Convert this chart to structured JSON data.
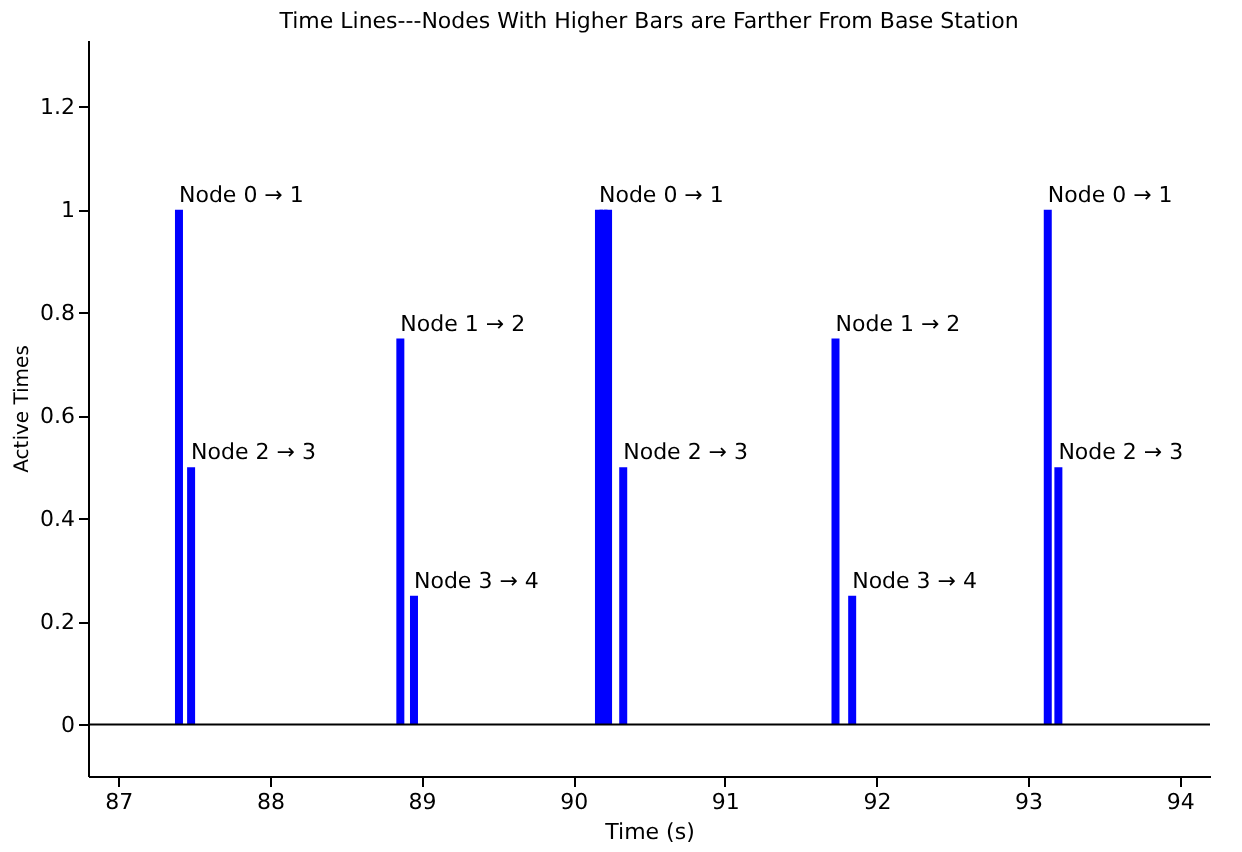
{
  "chart_data": {
    "type": "bar",
    "title": "Time Lines---Nodes With Higher Bars are Farther From Base Station",
    "xlabel": "Time (s)",
    "ylabel": "Active Times",
    "x": [
      87.4,
      87.48,
      88.86,
      88.95,
      90.17,
      90.2,
      90.23,
      90.33,
      91.73,
      91.84,
      93.13,
      93.2
    ],
    "series": [
      {
        "color": "#0000ff",
        "values": [
          1,
          0.5,
          0.75,
          0.25,
          1,
          1,
          1,
          0.5,
          0.75,
          0.25,
          1,
          0.5
        ]
      }
    ],
    "xlim": [
      86.8,
      94.2
    ],
    "xticks": [
      87,
      88,
      89,
      90,
      91,
      92,
      93,
      94
    ],
    "ylim": [
      -0.1,
      1.33
    ],
    "yticks": [
      0,
      0.2,
      0.4,
      0.6,
      0.8,
      1,
      1.2
    ],
    "ref_lines": [
      {
        "axis": "y",
        "value": 0
      }
    ],
    "grid": false,
    "annotations": [
      {
        "text": "Node 0 → 1",
        "x": 87.4,
        "y": 1
      },
      {
        "text": "Node 2 → 3",
        "x": 87.48,
        "y": 0.5
      },
      {
        "text": "Node 1 → 2",
        "x": 88.86,
        "y": 0.75
      },
      {
        "text": "Node 3 → 4",
        "x": 88.95,
        "y": 0.25
      },
      {
        "text": "Node 0 → 1",
        "x": 90.17,
        "y": 1
      },
      {
        "text": "Node 2 → 3",
        "x": 90.33,
        "y": 0.5
      },
      {
        "text": "Node 1 → 2",
        "x": 91.73,
        "y": 0.75
      },
      {
        "text": "Node 3 → 4",
        "x": 91.84,
        "y": 0.25
      },
      {
        "text": "Node 0 → 1",
        "x": 93.13,
        "y": 1
      },
      {
        "text": "Node 2 → 3",
        "x": 93.2,
        "y": 0.5
      }
    ]
  }
}
